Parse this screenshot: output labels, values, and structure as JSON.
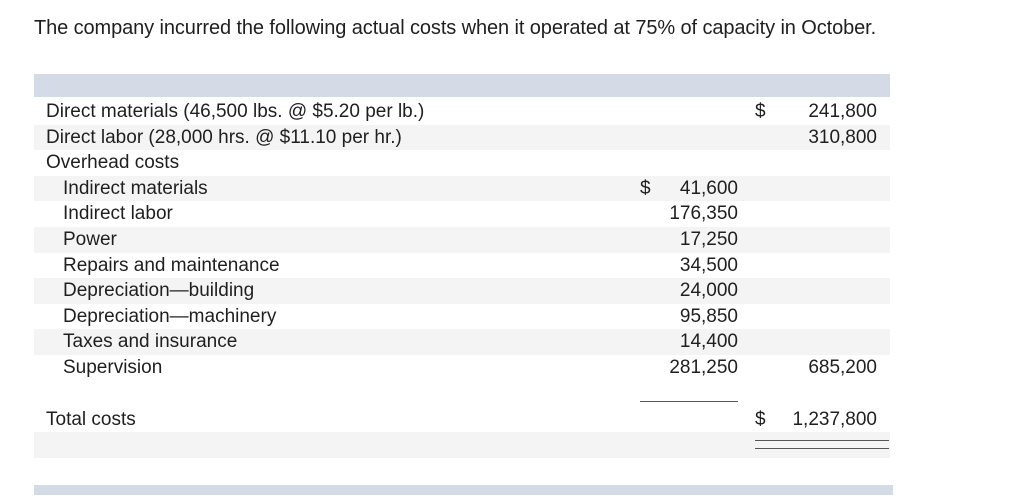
{
  "intro_text": "The company incurred the following actual costs when it operated at 75% of capacity in October.",
  "currency_symbol": "$",
  "rows": [
    {
      "label": "Direct materials (46,500 lbs. @ $5.20 per lb.)",
      "col1": "",
      "col2": "241,800"
    },
    {
      "label": "Direct labor (28,000 hrs. @ $11.10 per hr.)",
      "col1": "",
      "col2": "310,800"
    },
    {
      "label": "Overhead costs",
      "col1": "",
      "col2": ""
    },
    {
      "label": "Indirect materials",
      "col1": "41,600",
      "col2": ""
    },
    {
      "label": "Indirect labor",
      "col1": "176,350",
      "col2": ""
    },
    {
      "label": "Power",
      "col1": "17,250",
      "col2": ""
    },
    {
      "label": "Repairs and maintenance",
      "col1": "34,500",
      "col2": ""
    },
    {
      "label": "Depreciation—building",
      "col1": "24,000",
      "col2": ""
    },
    {
      "label": "Depreciation—machinery",
      "col1": "95,850",
      "col2": ""
    },
    {
      "label": "Taxes and insurance",
      "col1": "14,400",
      "col2": ""
    },
    {
      "label": "Supervision",
      "col1": "281,250",
      "col2": "685,200"
    }
  ],
  "total": {
    "label": "Total costs",
    "value": "1,237,800"
  }
}
